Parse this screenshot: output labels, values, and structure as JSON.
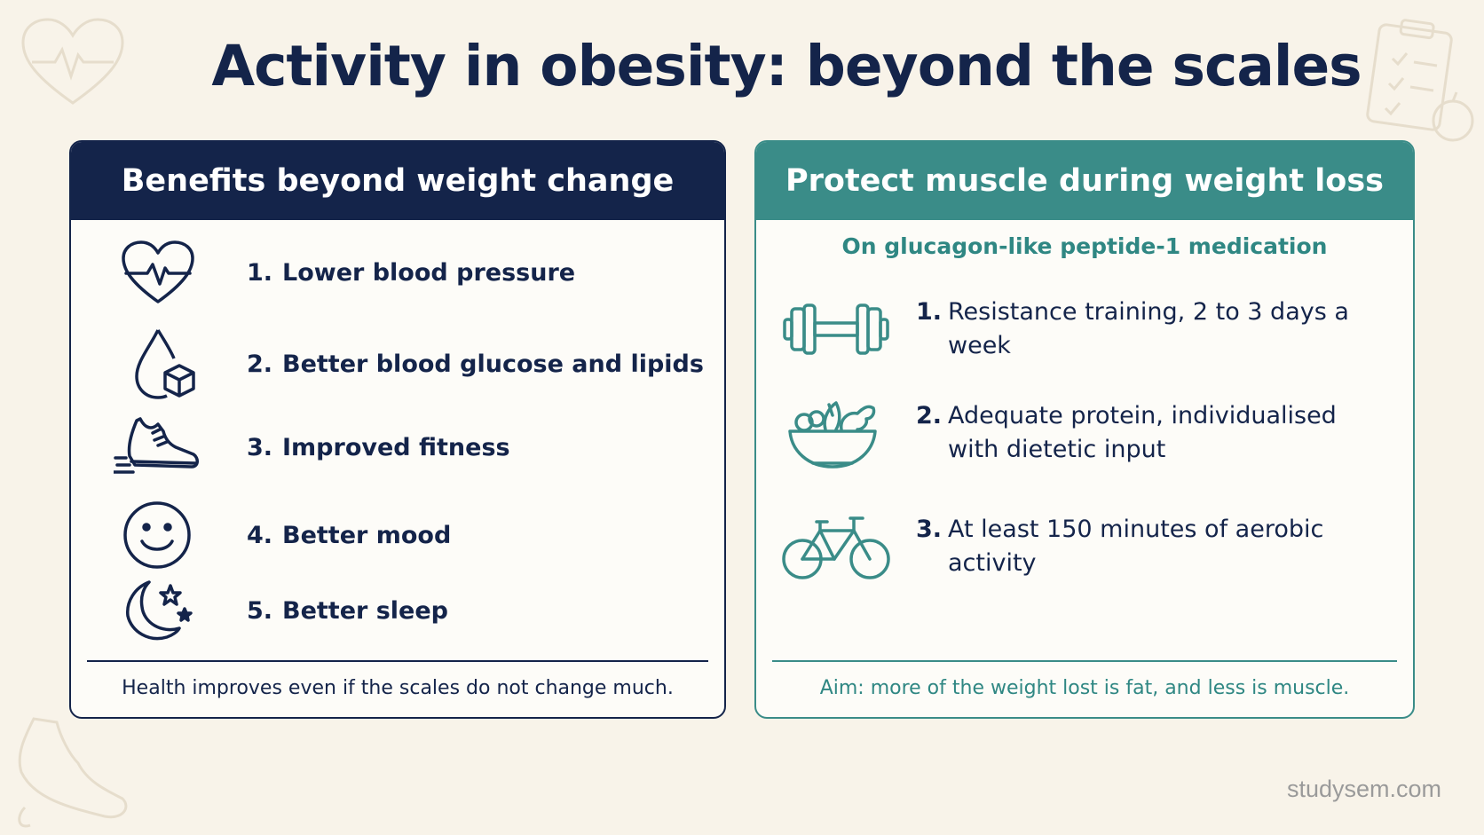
{
  "title": "Activity in obesity: beyond the scales",
  "colors": {
    "navy": "#14244a",
    "teal": "#3a8c88",
    "background": "#f8f3e9",
    "card": "#fdfcf8"
  },
  "left_card": {
    "header": "Benefits beyond weight change",
    "items": [
      {
        "number": "1.",
        "label": "Lower blood pressure",
        "icon": "heart-pulse-icon"
      },
      {
        "number": "2.",
        "label": "Better blood glucose and lipids",
        "icon": "drop-sugar-cube-icon"
      },
      {
        "number": "3.",
        "label": "Improved fitness",
        "icon": "running-shoe-icon"
      },
      {
        "number": "4.",
        "label": "Better mood",
        "icon": "smiley-face-icon"
      },
      {
        "number": "5.",
        "label": "Better sleep",
        "icon": "moon-stars-icon"
      }
    ],
    "footnote": "Health improves even if the scales do not change much."
  },
  "right_card": {
    "header": "Protect muscle during weight loss",
    "subtitle": "On glucagon-like peptide-1 medication",
    "items": [
      {
        "number": "1.",
        "label": "Resistance training, 2 to 3 days a week",
        "icon": "dumbbell-icon"
      },
      {
        "number": "2.",
        "label": "Adequate protein, individualised with dietetic input",
        "icon": "food-bowl-icon"
      },
      {
        "number": "3.",
        "label": "At least 150 minutes of aerobic activity",
        "icon": "bicycle-icon"
      }
    ],
    "footnote": "Aim: more of the weight lost is fat, and less is muscle."
  },
  "watermark": "studysem.com"
}
